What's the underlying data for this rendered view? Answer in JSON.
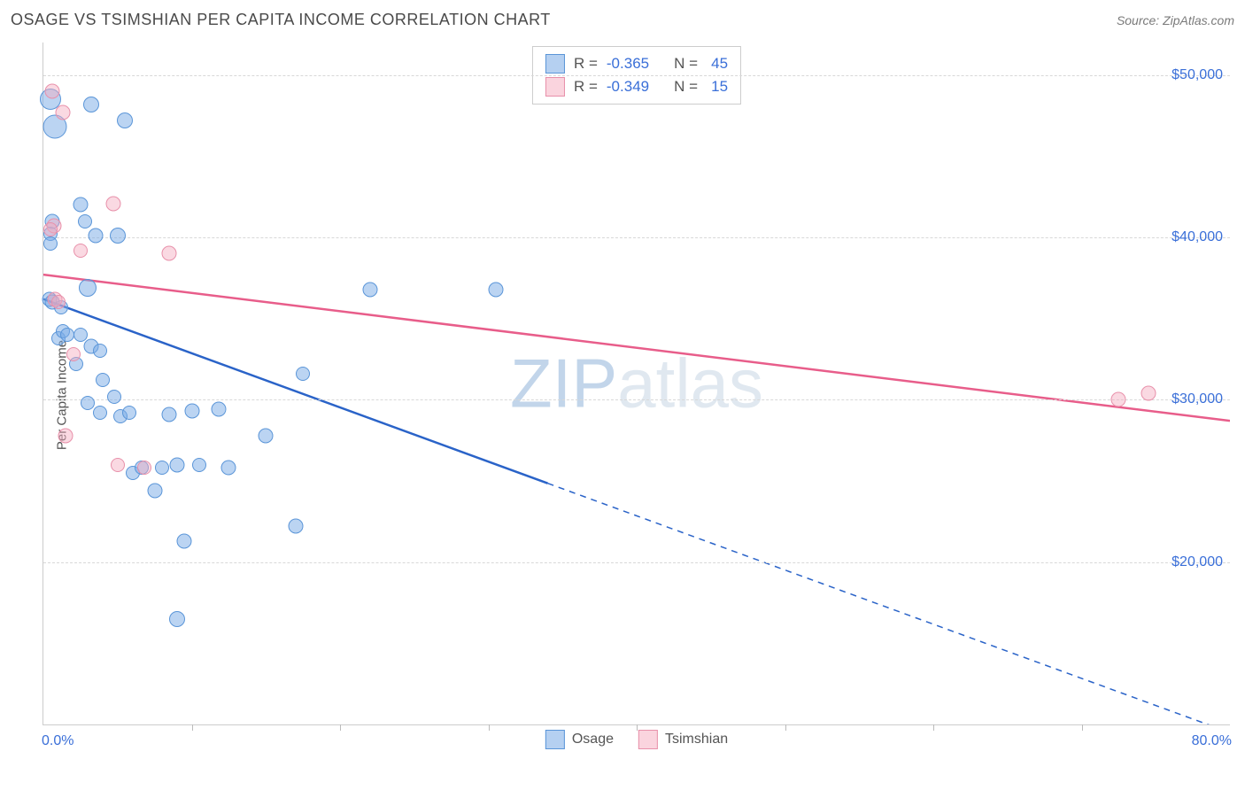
{
  "title": "OSAGE VS TSIMSHIAN PER CAPITA INCOME CORRELATION CHART",
  "source": "Source: ZipAtlas.com",
  "watermark_bold": "ZIP",
  "watermark_thin": "atlas",
  "ylabel": "Per Capita Income",
  "chart": {
    "type": "scatter",
    "xlim": [
      0,
      80
    ],
    "ylim": [
      10000,
      52000
    ],
    "xlim_labels": [
      "0.0%",
      "80.0%"
    ],
    "ytick_values": [
      20000,
      30000,
      40000,
      50000
    ],
    "ytick_labels": [
      "$20,000",
      "$30,000",
      "$40,000",
      "$50,000"
    ],
    "xtick_positions": [
      10,
      20,
      30,
      40,
      50,
      60,
      70
    ],
    "grid_color": "#d8d8d8",
    "axis_color": "#cccccc",
    "background_color": "#ffffff",
    "marker_base_size": 15,
    "series": [
      {
        "name": "Osage",
        "color_fill": "rgba(120,170,230,0.5)",
        "color_stroke": "#5a95d8",
        "r_value": "-0.365",
        "n_value": "45",
        "trend_color": "#2a63c8",
        "trend_y_at_x0": 36200,
        "trend_y_at_x80": 9500,
        "trend_x_data_max": 34,
        "points": [
          {
            "x": 0.5,
            "y": 48500,
            "s": 22
          },
          {
            "x": 0.8,
            "y": 46800,
            "s": 25
          },
          {
            "x": 0.6,
            "y": 41000,
            "s": 15
          },
          {
            "x": 0.5,
            "y": 40200,
            "s": 14
          },
          {
            "x": 0.5,
            "y": 39600,
            "s": 14
          },
          {
            "x": 0.4,
            "y": 36200,
            "s": 15
          },
          {
            "x": 0.6,
            "y": 36000,
            "s": 15
          },
          {
            "x": 1.2,
            "y": 35700,
            "s": 14
          },
          {
            "x": 1.0,
            "y": 33800,
            "s": 14
          },
          {
            "x": 1.3,
            "y": 34200,
            "s": 14
          },
          {
            "x": 1.6,
            "y": 34000,
            "s": 14
          },
          {
            "x": 3.2,
            "y": 48200,
            "s": 16
          },
          {
            "x": 5.5,
            "y": 47200,
            "s": 16
          },
          {
            "x": 2.5,
            "y": 42000,
            "s": 15
          },
          {
            "x": 2.8,
            "y": 41000,
            "s": 14
          },
          {
            "x": 3.5,
            "y": 40100,
            "s": 15
          },
          {
            "x": 5.0,
            "y": 40100,
            "s": 16
          },
          {
            "x": 3.0,
            "y": 36900,
            "s": 18
          },
          {
            "x": 2.5,
            "y": 34000,
            "s": 14
          },
          {
            "x": 3.2,
            "y": 33300,
            "s": 15
          },
          {
            "x": 3.8,
            "y": 33000,
            "s": 14
          },
          {
            "x": 2.2,
            "y": 32200,
            "s": 14
          },
          {
            "x": 4.0,
            "y": 31200,
            "s": 14
          },
          {
            "x": 4.8,
            "y": 30200,
            "s": 14
          },
          {
            "x": 3.0,
            "y": 29800,
            "s": 14
          },
          {
            "x": 3.8,
            "y": 29200,
            "s": 14
          },
          {
            "x": 5.2,
            "y": 29000,
            "s": 14
          },
          {
            "x": 5.8,
            "y": 29200,
            "s": 14
          },
          {
            "x": 6.0,
            "y": 25500,
            "s": 14
          },
          {
            "x": 6.6,
            "y": 25800,
            "s": 14
          },
          {
            "x": 8.5,
            "y": 29100,
            "s": 15
          },
          {
            "x": 10.0,
            "y": 29300,
            "s": 15
          },
          {
            "x": 11.8,
            "y": 29400,
            "s": 15
          },
          {
            "x": 8.0,
            "y": 25800,
            "s": 14
          },
          {
            "x": 9.0,
            "y": 26000,
            "s": 15
          },
          {
            "x": 10.5,
            "y": 26000,
            "s": 14
          },
          {
            "x": 12.5,
            "y": 25800,
            "s": 15
          },
          {
            "x": 7.5,
            "y": 24400,
            "s": 15
          },
          {
            "x": 15.0,
            "y": 27800,
            "s": 15
          },
          {
            "x": 17.0,
            "y": 22200,
            "s": 15
          },
          {
            "x": 17.5,
            "y": 31600,
            "s": 14
          },
          {
            "x": 22.0,
            "y": 36800,
            "s": 15
          },
          {
            "x": 30.5,
            "y": 36800,
            "s": 15
          },
          {
            "x": 9.5,
            "y": 21300,
            "s": 15
          },
          {
            "x": 9.0,
            "y": 16500,
            "s": 16
          }
        ]
      },
      {
        "name": "Tsimshian",
        "color_fill": "rgba(245,170,190,0.45)",
        "color_stroke": "#e890aa",
        "r_value": "-0.349",
        "n_value": "15",
        "trend_color": "#e85d8a",
        "trend_y_at_x0": 37700,
        "trend_y_at_x80": 28700,
        "trend_x_data_max": 80,
        "points": [
          {
            "x": 0.6,
            "y": 49000,
            "s": 15
          },
          {
            "x": 1.3,
            "y": 47700,
            "s": 15
          },
          {
            "x": 0.7,
            "y": 40700,
            "s": 15
          },
          {
            "x": 0.5,
            "y": 40500,
            "s": 14
          },
          {
            "x": 4.7,
            "y": 42100,
            "s": 15
          },
          {
            "x": 2.5,
            "y": 39200,
            "s": 14
          },
          {
            "x": 8.5,
            "y": 39000,
            "s": 15
          },
          {
            "x": 0.8,
            "y": 36200,
            "s": 15
          },
          {
            "x": 1.0,
            "y": 36000,
            "s": 14
          },
          {
            "x": 2.0,
            "y": 32800,
            "s": 14
          },
          {
            "x": 1.5,
            "y": 27800,
            "s": 15
          },
          {
            "x": 5.0,
            "y": 26000,
            "s": 14
          },
          {
            "x": 6.8,
            "y": 25800,
            "s": 14
          },
          {
            "x": 72.5,
            "y": 30000,
            "s": 15
          },
          {
            "x": 74.5,
            "y": 30400,
            "s": 15
          }
        ]
      }
    ]
  },
  "legend_top": {
    "R_label": "R =",
    "N_label": "N ="
  },
  "legend_bottom": [
    "Osage",
    "Tsimshian"
  ]
}
